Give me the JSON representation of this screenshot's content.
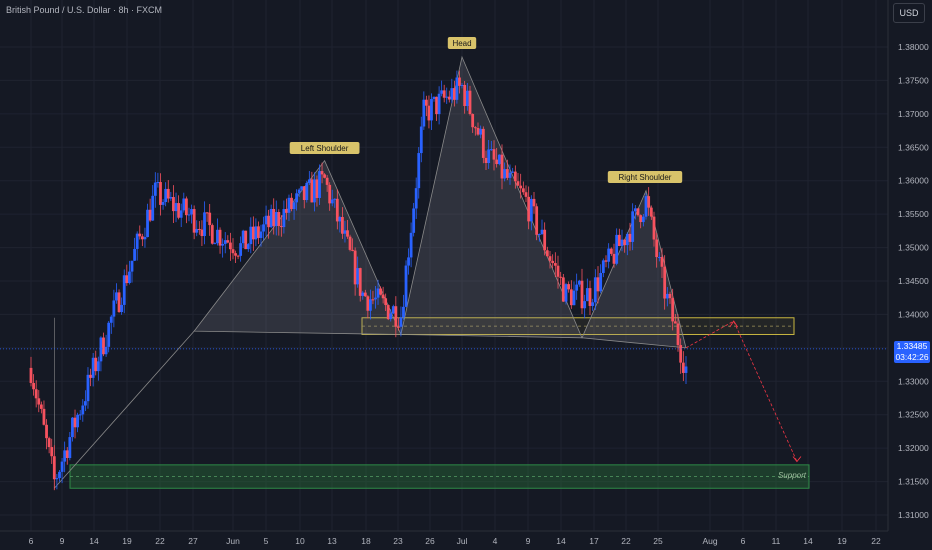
{
  "header": {
    "title": "British Pound / U.S. Dollar · 8h · FXCM",
    "currency_button": "USD"
  },
  "price_tag": {
    "price": "1.33485",
    "countdown": "03:42:26"
  },
  "colors": {
    "background": "#151924",
    "bull": "#2962ff",
    "bear": "#f7525f",
    "pattern_line": "#8a8a8a",
    "resistance_zone": "#c8b640",
    "support_zone": "#2b7a3a",
    "projection": "#f23645",
    "label_bg": "#d8c36a"
  },
  "chart_data": {
    "type": "candlestick",
    "title": "British Pound / U.S. Dollar · 8h · FXCM",
    "y_axis": {
      "range": [
        1.307,
        1.3855
      ],
      "ticks": [
        "1.38000",
        "1.37500",
        "1.37000",
        "1.36500",
        "1.36000",
        "1.35500",
        "1.35000",
        "1.34500",
        "1.34000",
        "1.33500",
        "1.33000",
        "1.32500",
        "1.32000",
        "1.31500",
        "1.31000"
      ]
    },
    "x_axis": {
      "tick_labels": [
        "6",
        "9",
        "14",
        "19",
        "22",
        "27",
        "Jun",
        "5",
        "10",
        "13",
        "18",
        "23",
        "26",
        "Jul",
        "4",
        "9",
        "14",
        "17",
        "22",
        "25",
        "Aug",
        "6",
        "11",
        "14",
        "19",
        "22"
      ]
    },
    "last_price": 1.33485,
    "annotations": [
      "Left Shoulder",
      "Head",
      "Right Shoulder",
      "Support"
    ],
    "pattern": {
      "type": "head-and-shoulders",
      "points": [
        {
          "date": "May 9",
          "price": 1.314
        },
        {
          "date": "May 27",
          "price": 1.3375
        },
        {
          "date": "Jun 13",
          "price": 1.363
        },
        {
          "date": "Jun 23",
          "price": 1.337
        },
        {
          "date": "Jul 1",
          "price": 1.3785
        },
        {
          "date": "Jul 16",
          "price": 1.3365
        },
        {
          "date": "Jul 24",
          "price": 1.3585
        },
        {
          "date": "Jul 29",
          "price": 1.335
        }
      ]
    },
    "zones": [
      {
        "name": "neckline resistance",
        "price_from": 1.337,
        "price_to": 1.3395
      },
      {
        "name": "Support",
        "price_from": 1.314,
        "price_to": 1.3175
      }
    ],
    "projection": [
      {
        "date": "Jul 29",
        "price": 1.335
      },
      {
        "date": "Aug 4",
        "price": 1.339
      },
      {
        "date": "Aug 12",
        "price": 1.318
      }
    ],
    "ohlc_key_points": [
      {
        "date": "May 6",
        "close": 1.332
      },
      {
        "date": "May 9",
        "close": 1.315
      },
      {
        "date": "May 22",
        "close": 1.358
      },
      {
        "date": "Jun 2",
        "close": 1.35
      },
      {
        "date": "Jun 13",
        "close": 1.36
      },
      {
        "date": "Jun 18",
        "close": 1.343
      },
      {
        "date": "Jun 23",
        "close": 1.34
      },
      {
        "date": "Jun 26",
        "close": 1.37
      },
      {
        "date": "Jul 1",
        "close": 1.374
      },
      {
        "date": "Jul 4",
        "close": 1.364
      },
      {
        "date": "Jul 9",
        "close": 1.357
      },
      {
        "date": "Jul 14",
        "close": 1.343
      },
      {
        "date": "Jul 17",
        "close": 1.343
      },
      {
        "date": "Jul 24",
        "close": 1.357
      },
      {
        "date": "Jul 26",
        "close": 1.345
      },
      {
        "date": "Jul 29",
        "close": 1.332
      }
    ]
  }
}
